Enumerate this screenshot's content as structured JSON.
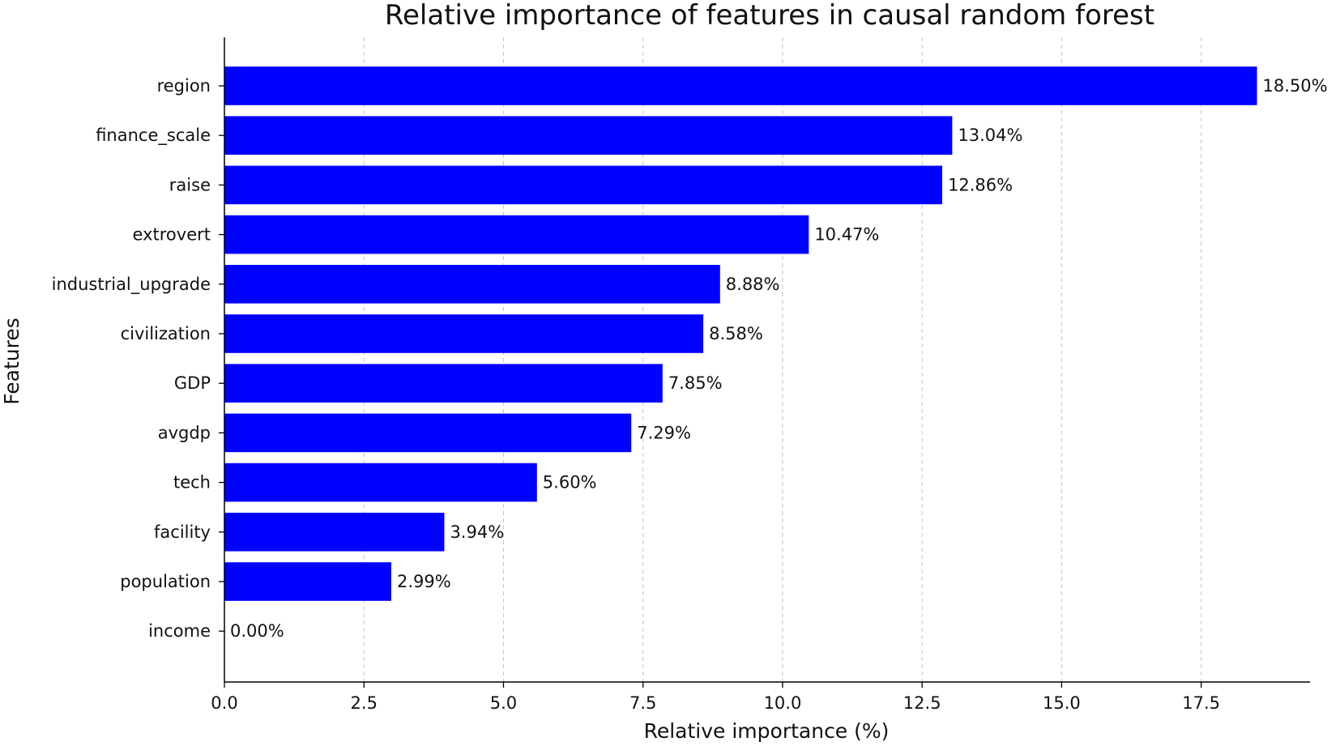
{
  "chart_data": {
    "type": "bar",
    "orientation": "horizontal",
    "title": "Relative importance of features in causal random forest",
    "xlabel": "Relative importance (%)",
    "ylabel": "Features",
    "categories": [
      "region",
      "finance_scale",
      "raise",
      "extrovert",
      "industrial_upgrade",
      "civilization",
      "GDP",
      "avgdp",
      "tech",
      "facility",
      "population",
      "income"
    ],
    "values": [
      18.5,
      13.04,
      12.86,
      10.47,
      8.88,
      8.58,
      7.85,
      7.29,
      5.6,
      3.94,
      2.99,
      0.0
    ],
    "value_labels": [
      "18.50%",
      "13.04%",
      "12.86%",
      "10.47%",
      "8.88%",
      "8.58%",
      "7.85%",
      "7.29%",
      "5.60%",
      "3.94%",
      "2.99%",
      "0.00%"
    ],
    "xticks": [
      0.0,
      2.5,
      5.0,
      7.5,
      10.0,
      12.5,
      15.0,
      17.5
    ],
    "xtick_labels": [
      "0.0",
      "2.5",
      "5.0",
      "7.5",
      "10.0",
      "12.5",
      "15.0",
      "17.5"
    ],
    "xlim": [
      0,
      19.45
    ],
    "grid": "x-dashed",
    "bar_color": "#0000ff"
  }
}
